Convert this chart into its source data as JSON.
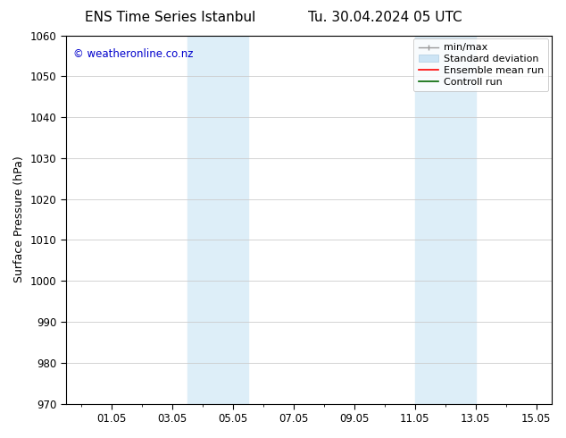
{
  "title_left": "ENS Time Series Istanbul",
  "title_right": "Tu. 30.04.2024 05 UTC",
  "ylabel": "Surface Pressure (hPa)",
  "ylim": [
    970,
    1060
  ],
  "yticks": [
    970,
    980,
    990,
    1000,
    1010,
    1020,
    1030,
    1040,
    1050,
    1060
  ],
  "xlim": [
    -0.5,
    15.5
  ],
  "xtick_labels": [
    "01.05",
    "03.05",
    "05.05",
    "07.05",
    "09.05",
    "11.05",
    "13.05",
    "15.05"
  ],
  "xtick_positions": [
    1,
    3,
    5,
    7,
    9,
    11,
    13,
    15
  ],
  "shading_bands": [
    {
      "x_start": 3.5,
      "x_end": 5.5,
      "color": "#ddeef8"
    },
    {
      "x_start": 11.0,
      "x_end": 13.0,
      "color": "#ddeef8"
    }
  ],
  "watermark_text": "© weatheronline.co.nz",
  "watermark_color": "#0000cc",
  "background_color": "#ffffff",
  "grid_color": "#cccccc",
  "spine_color": "#000000",
  "title_fontsize": 11,
  "tick_fontsize": 8.5,
  "ylabel_fontsize": 9,
  "watermark_fontsize": 8.5,
  "legend_fontsize": 8
}
